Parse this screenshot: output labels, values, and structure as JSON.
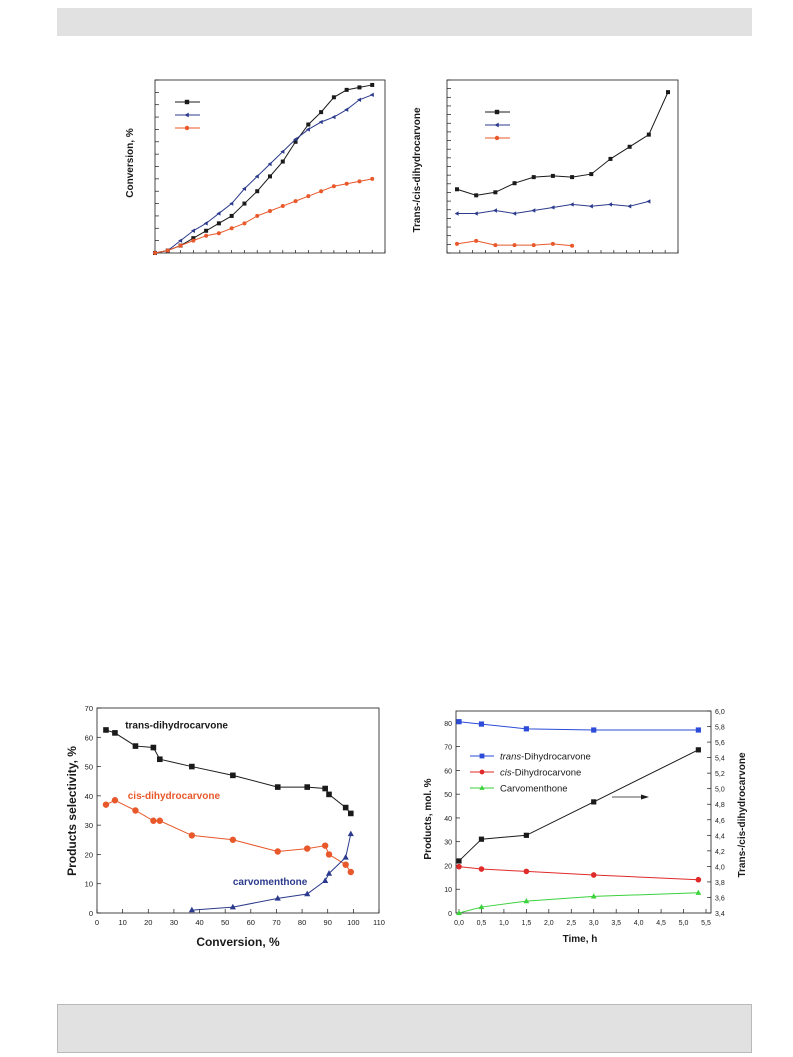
{
  "chart_data": [
    {
      "id": "fig-a",
      "type": "line",
      "title": "",
      "xlabel": "",
      "ylabel": "Conversion, %",
      "series": [
        {
          "values": [
            [
              0,
              0
            ],
            [
              1,
              1
            ],
            [
              2,
              3
            ],
            [
              3,
              6
            ],
            [
              4,
              9
            ],
            [
              5,
              12
            ],
            [
              6,
              15
            ],
            [
              7,
              20
            ],
            [
              8,
              25
            ],
            [
              9,
              31
            ],
            [
              10,
              37
            ],
            [
              11,
              45
            ],
            [
              12,
              52
            ],
            [
              13,
              57
            ],
            [
              14,
              63
            ],
            [
              15,
              66
            ],
            [
              16,
              67
            ],
            [
              17,
              68
            ]
          ]
        },
        {
          "values": [
            [
              0,
              0
            ],
            [
              1,
              1
            ],
            [
              2,
              5
            ],
            [
              3,
              9
            ],
            [
              4,
              12
            ],
            [
              5,
              16
            ],
            [
              6,
              20
            ],
            [
              7,
              26
            ],
            [
              8,
              31
            ],
            [
              9,
              36
            ],
            [
              10,
              41
            ],
            [
              11,
              46
            ],
            [
              12,
              50
            ],
            [
              13,
              53
            ],
            [
              14,
              55
            ],
            [
              15,
              58
            ],
            [
              16,
              62
            ],
            [
              17,
              64
            ]
          ]
        },
        {
          "values": [
            [
              0,
              0
            ],
            [
              1,
              1
            ],
            [
              2,
              3
            ],
            [
              3,
              5
            ],
            [
              4,
              7
            ],
            [
              5,
              8
            ],
            [
              6,
              10
            ],
            [
              7,
              12
            ],
            [
              8,
              15
            ],
            [
              9,
              17
            ],
            [
              10,
              19
            ],
            [
              11,
              21
            ],
            [
              12,
              23
            ],
            [
              13,
              25
            ],
            [
              14,
              27
            ],
            [
              15,
              28
            ],
            [
              16,
              29
            ],
            [
              17,
              30
            ]
          ]
        }
      ],
      "colors": [
        "#1a1a1a",
        "#2b3a8c",
        "#e8582a"
      ],
      "markers": [
        "square",
        "triangle-left",
        "circle"
      ]
    },
    {
      "id": "fig-b",
      "type": "line",
      "title": "",
      "xlabel": "",
      "ylabel": "Trans-/cis-dihydrocarvone",
      "series": [
        {
          "values": [
            [
              0,
              4.4
            ],
            [
              1,
              4.3
            ],
            [
              2,
              4.35
            ],
            [
              3,
              4.5
            ],
            [
              4,
              4.6
            ],
            [
              5,
              4.62
            ],
            [
              6,
              4.6
            ],
            [
              7,
              4.65
            ],
            [
              8,
              4.9
            ],
            [
              9,
              5.1
            ],
            [
              10,
              5.3
            ],
            [
              11,
              6.0
            ]
          ]
        },
        {
          "values": [
            [
              0,
              4.0
            ],
            [
              1,
              4.0
            ],
            [
              2,
              4.05
            ],
            [
              3,
              4.0
            ],
            [
              4,
              4.05
            ],
            [
              5,
              4.1
            ],
            [
              6,
              4.15
            ],
            [
              7,
              4.12
            ],
            [
              8,
              4.15
            ],
            [
              9,
              4.12
            ],
            [
              10,
              4.2
            ]
          ]
        },
        {
          "values": [
            [
              0,
              3.5
            ],
            [
              1,
              3.55
            ],
            [
              2,
              3.48
            ],
            [
              3,
              3.48
            ],
            [
              4,
              3.48
            ],
            [
              5,
              3.5
            ],
            [
              6,
              3.47
            ]
          ]
        }
      ],
      "colors": [
        "#1a1a1a",
        "#2b3a8c",
        "#e8582a"
      ],
      "markers": [
        "square",
        "triangle-left",
        "circle"
      ]
    },
    {
      "id": "fig-c",
      "type": "line",
      "title": "",
      "xlabel": "Conversion, %",
      "ylabel": "Products selectivity, %",
      "xlim": [
        0,
        110
      ],
      "ylim": [
        0,
        70
      ],
      "xticks": [
        "0",
        "10",
        "20",
        "30",
        "40",
        "50",
        "60",
        "70",
        "80",
        "90",
        "100",
        "110"
      ],
      "yticks": [
        "0",
        "10",
        "20",
        "30",
        "40",
        "50",
        "60",
        "70"
      ],
      "series": [
        {
          "name": "trans-dihydrocarvone",
          "color": "#1a1a1a",
          "marker": "square",
          "x": [
            3.5,
            7,
            15,
            22,
            24.5,
            37,
            53,
            70.5,
            82,
            89,
            90.5,
            97,
            99
          ],
          "y": [
            62.5,
            61.5,
            57,
            56.5,
            52.5,
            50,
            47,
            43,
            43,
            42.5,
            40.5,
            36,
            34
          ]
        },
        {
          "name": "cis-dihydrocarvone",
          "color": "#e8582a",
          "marker": "circle",
          "x": [
            3.5,
            7,
            15,
            22,
            24.5,
            37,
            53,
            70.5,
            82,
            89,
            90.5,
            97,
            99
          ],
          "y": [
            37,
            38.5,
            35,
            31.5,
            31.5,
            26.5,
            25,
            21,
            22,
            23,
            20,
            16.5,
            14
          ]
        },
        {
          "name": "carvomenthone",
          "color": "#2b3a8c",
          "marker": "triangle",
          "x": [
            37,
            53,
            70.5,
            82,
            89,
            90.5,
            97,
            99
          ],
          "y": [
            1,
            2,
            5,
            6.5,
            11,
            13.5,
            19,
            27
          ]
        }
      ],
      "labels": [
        {
          "text": "trans-dihydrocarvone",
          "color": "#1a1a1a",
          "x": 11,
          "y": 63
        },
        {
          "text": "cis-dihydrocarvone",
          "color": "#e8582a",
          "x": 12,
          "y": 39
        },
        {
          "text": "carvomenthone",
          "color": "#2b3a8c",
          "x": 53,
          "y": 9.5
        }
      ]
    },
    {
      "id": "fig-d",
      "type": "line",
      "title": "",
      "xlabel": "Time, h",
      "ylabel": "Products, mol. %",
      "y2label": "Trans-/cis-dihydrocarvone",
      "xlim": [
        0,
        5.5
      ],
      "ylim": [
        0,
        85
      ],
      "y2lim": [
        3.4,
        6.0
      ],
      "xticks": [
        "0,0",
        "0,5",
        "1,0",
        "1,5",
        "2,0",
        "2,5",
        "3,0",
        "3,5",
        "4,0",
        "4,5",
        "5,0",
        "5,5"
      ],
      "yticks": [
        "0",
        "10",
        "20",
        "30",
        "40",
        "50",
        "60",
        "70",
        "80"
      ],
      "y2ticks": [
        "3,4",
        "3,6",
        "3,8",
        "4,0",
        "4,2",
        "4,4",
        "4,6",
        "4,8",
        "5,0",
        "5,2",
        "5,4",
        "5,6",
        "5,8",
        "6,0"
      ],
      "legend_position": "upper-left",
      "series": [
        {
          "name": "trans-Dihydrocarvone",
          "name_italic": "trans",
          "name_rest": "-Dihydrocarvone",
          "color": "#2b4bd8",
          "marker": "square",
          "x": [
            0,
            0.5,
            1.5,
            3.0,
            5.33
          ],
          "y": [
            80.5,
            79.5,
            77.5,
            77,
            77
          ]
        },
        {
          "name": "cis-Dihydrocarvone",
          "name_italic": "cis",
          "name_rest": "-Dihydrocarvone",
          "color": "#e02a2a",
          "marker": "circle",
          "x": [
            0,
            0.5,
            1.5,
            3.0,
            5.33
          ],
          "y": [
            19.5,
            18.5,
            17.5,
            16,
            14
          ]
        },
        {
          "name": "Carvomenthone",
          "name_italic": "",
          "name_rest": "Carvomenthone",
          "color": "#3bd23b",
          "marker": "triangle",
          "x": [
            0,
            0.5,
            1.5,
            3.0,
            5.33
          ],
          "y": [
            0,
            2.5,
            5,
            7,
            8.5
          ]
        },
        {
          "axis": "right",
          "color": "#1a1a1a",
          "marker": "square",
          "x": [
            0,
            0.5,
            1.5,
            3.0,
            5.33
          ],
          "y": [
            4.07,
            4.35,
            4.4,
            4.83,
            5.5
          ]
        }
      ],
      "annotation": "arrow-to-right-axis"
    }
  ]
}
